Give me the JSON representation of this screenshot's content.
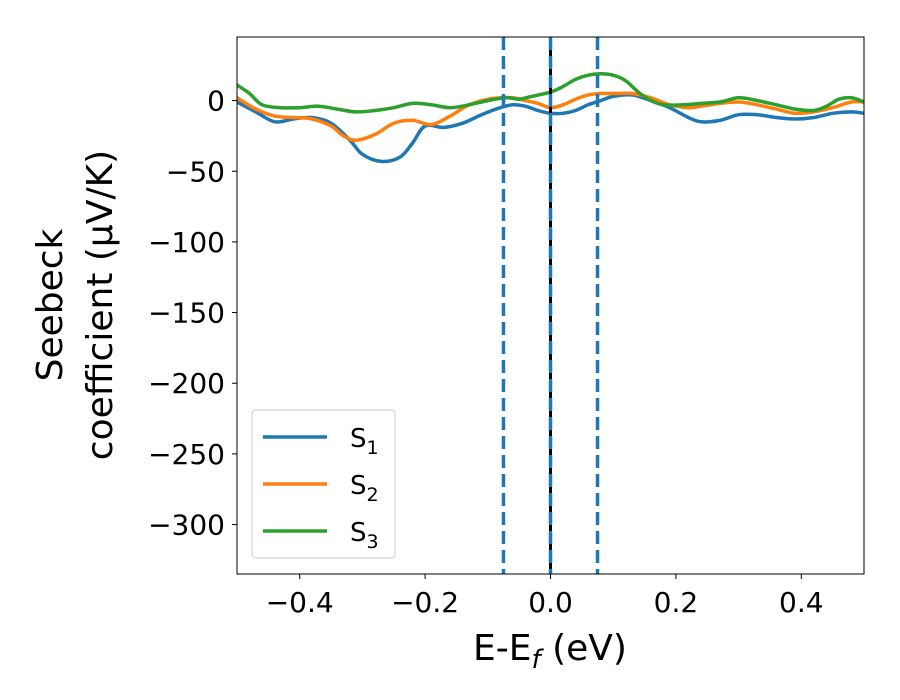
{
  "chart_data": {
    "type": "line",
    "title": "",
    "xlabel": {
      "main": "E-E",
      "sub": "f",
      "unit": " (eV)"
    },
    "ylabel": {
      "line1": "Seebeck",
      "line2": "coefficient  (μV/K)"
    },
    "xlim": [
      -0.5,
      0.5
    ],
    "ylim": [
      -335,
      45
    ],
    "xticks": [
      -0.4,
      -0.2,
      0.0,
      0.2,
      0.4
    ],
    "xtick_labels": [
      "−0.4",
      "−0.2",
      "0.0",
      "0.2",
      "0.4"
    ],
    "yticks": [
      0,
      -50,
      -100,
      -150,
      -200,
      -250,
      -300
    ],
    "ytick_labels": [
      "0",
      "−50",
      "−100",
      "−150",
      "−200",
      "−250",
      "−300"
    ],
    "grid": false,
    "legend_position": "bottom-left",
    "series": [
      {
        "name": "S1",
        "label_main": "S",
        "label_sub": "1",
        "color": "#1f77b4",
        "points": [
          [
            -0.5,
            -1
          ],
          [
            -0.47,
            -8
          ],
          [
            -0.44,
            -15
          ],
          [
            -0.41,
            -13
          ],
          [
            -0.38,
            -12
          ],
          [
            -0.35,
            -16
          ],
          [
            -0.32,
            -28
          ],
          [
            -0.3,
            -38
          ],
          [
            -0.27,
            -43
          ],
          [
            -0.24,
            -40
          ],
          [
            -0.22,
            -30
          ],
          [
            -0.2,
            -18
          ],
          [
            -0.17,
            -19
          ],
          [
            -0.14,
            -16
          ],
          [
            -0.11,
            -10
          ],
          [
            -0.08,
            -5
          ],
          [
            -0.06,
            -3
          ],
          [
            -0.04,
            -4
          ],
          [
            -0.02,
            -7
          ],
          [
            0.0,
            -9
          ],
          [
            0.02,
            -9
          ],
          [
            0.04,
            -7
          ],
          [
            0.06,
            -3
          ],
          [
            0.08,
            0
          ],
          [
            0.1,
            3
          ],
          [
            0.13,
            4
          ],
          [
            0.16,
            0
          ],
          [
            0.19,
            -5
          ],
          [
            0.22,
            -12
          ],
          [
            0.24,
            -15
          ],
          [
            0.27,
            -14
          ],
          [
            0.3,
            -10
          ],
          [
            0.33,
            -10
          ],
          [
            0.36,
            -12
          ],
          [
            0.39,
            -13
          ],
          [
            0.42,
            -12
          ],
          [
            0.45,
            -9
          ],
          [
            0.48,
            -8
          ],
          [
            0.5,
            -9
          ]
        ]
      },
      {
        "name": "S2",
        "label_main": "S",
        "label_sub": "2",
        "color": "#ff7f0e",
        "points": [
          [
            -0.5,
            2
          ],
          [
            -0.47,
            -6
          ],
          [
            -0.44,
            -11
          ],
          [
            -0.41,
            -12
          ],
          [
            -0.38,
            -13
          ],
          [
            -0.35,
            -18
          ],
          [
            -0.33,
            -25
          ],
          [
            -0.31,
            -28
          ],
          [
            -0.28,
            -24
          ],
          [
            -0.25,
            -16
          ],
          [
            -0.22,
            -14
          ],
          [
            -0.19,
            -17
          ],
          [
            -0.16,
            -11
          ],
          [
            -0.13,
            -3
          ],
          [
            -0.1,
            1
          ],
          [
            -0.08,
            2
          ],
          [
            -0.06,
            2
          ],
          [
            -0.04,
            0
          ],
          [
            -0.02,
            -2
          ],
          [
            0.0,
            -5
          ],
          [
            0.02,
            -3
          ],
          [
            0.04,
            1
          ],
          [
            0.06,
            4
          ],
          [
            0.08,
            5
          ],
          [
            0.1,
            5
          ],
          [
            0.13,
            5
          ],
          [
            0.16,
            2
          ],
          [
            0.19,
            -3
          ],
          [
            0.22,
            -5
          ],
          [
            0.24,
            -4
          ],
          [
            0.27,
            -2
          ],
          [
            0.3,
            -1
          ],
          [
            0.33,
            -3
          ],
          [
            0.36,
            -6
          ],
          [
            0.39,
            -9
          ],
          [
            0.42,
            -8
          ],
          [
            0.45,
            -5
          ],
          [
            0.48,
            -1
          ],
          [
            0.5,
            -1
          ]
        ]
      },
      {
        "name": "S3",
        "label_main": "S",
        "label_sub": "3",
        "color": "#2ca02c",
        "points": [
          [
            -0.5,
            11
          ],
          [
            -0.48,
            5
          ],
          [
            -0.46,
            -3
          ],
          [
            -0.43,
            -5
          ],
          [
            -0.4,
            -5
          ],
          [
            -0.37,
            -4
          ],
          [
            -0.34,
            -6
          ],
          [
            -0.31,
            -8
          ],
          [
            -0.28,
            -7
          ],
          [
            -0.25,
            -5
          ],
          [
            -0.22,
            -2
          ],
          [
            -0.19,
            -3
          ],
          [
            -0.16,
            -5
          ],
          [
            -0.13,
            -3
          ],
          [
            -0.1,
            0
          ],
          [
            -0.07,
            2
          ],
          [
            -0.05,
            1
          ],
          [
            -0.03,
            3
          ],
          [
            0.0,
            6
          ],
          [
            0.02,
            10
          ],
          [
            0.04,
            15
          ],
          [
            0.06,
            18
          ],
          [
            0.08,
            19
          ],
          [
            0.1,
            18
          ],
          [
            0.12,
            14
          ],
          [
            0.14,
            6
          ],
          [
            0.16,
            0
          ],
          [
            0.18,
            -3
          ],
          [
            0.21,
            -3
          ],
          [
            0.24,
            -2
          ],
          [
            0.27,
            -1
          ],
          [
            0.3,
            2
          ],
          [
            0.33,
            0
          ],
          [
            0.36,
            -3
          ],
          [
            0.39,
            -6
          ],
          [
            0.42,
            -7
          ],
          [
            0.44,
            -4
          ],
          [
            0.46,
            1
          ],
          [
            0.48,
            2
          ],
          [
            0.5,
            -1
          ]
        ]
      }
    ],
    "vlines": [
      {
        "x": -0.075,
        "color": "#1f77b4",
        "style": "dashed"
      },
      {
        "x": 0.0,
        "color": "#000000",
        "style": "solid"
      },
      {
        "x": 0.0,
        "color": "#1f77b4",
        "style": "dashed"
      },
      {
        "x": 0.075,
        "color": "#1f77b4",
        "style": "dashed"
      }
    ]
  }
}
